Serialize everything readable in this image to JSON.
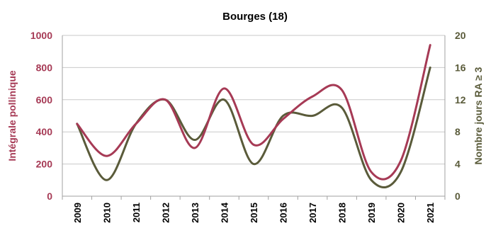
{
  "chart_data": {
    "type": "line",
    "title": "Bourges (18)",
    "categories": [
      "2009",
      "2010",
      "2011",
      "2012",
      "2013",
      "2014",
      "2015",
      "2016",
      "2017",
      "2018",
      "2019",
      "2020",
      "2021"
    ],
    "series": [
      {
        "axis": "left",
        "color": "#a63a55",
        "values": [
          450,
          250,
          450,
          600,
          300,
          670,
          320,
          480,
          620,
          660,
          150,
          220,
          940
        ]
      },
      {
        "axis": "right",
        "color": "#5a5b3a",
        "values": [
          9,
          2,
          9,
          12,
          7,
          12,
          4,
          10,
          10,
          11,
          2,
          3,
          16
        ]
      }
    ],
    "y_left": {
      "label": "Intégrale pollinique",
      "min": 0,
      "max": 1000,
      "ticks": [
        "0",
        "200",
        "400",
        "600",
        "800",
        "1000"
      ],
      "color": "#a63a55"
    },
    "y_right": {
      "label": "Nombre jours  RA ≥ 3",
      "min": 0,
      "max": 20,
      "ticks": [
        "0",
        "4",
        "8",
        "12",
        "16",
        "20"
      ],
      "color": "#5a5b3a"
    },
    "grid": true,
    "legend": "none"
  }
}
